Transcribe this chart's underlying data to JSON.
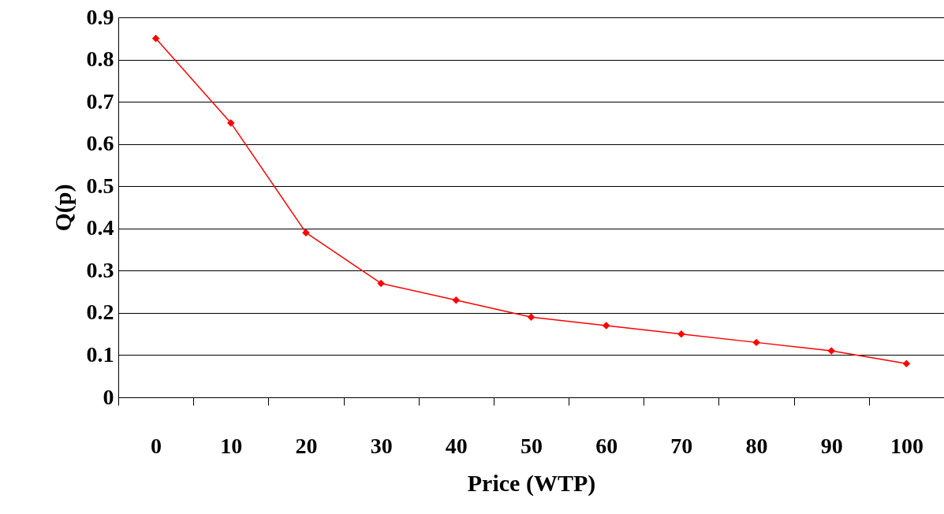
{
  "chart_data": {
    "type": "line",
    "xlabel": "Price (WTP)",
    "ylabel": "Q(p)",
    "categories": [
      "0",
      "10",
      "20",
      "30",
      "40",
      "50",
      "60",
      "70",
      "80",
      "90",
      "100"
    ],
    "series": [
      {
        "color": "#ff0000",
        "values": [
          0.85,
          0.65,
          0.39,
          0.27,
          0.23,
          0.19,
          0.17,
          0.15,
          0.13,
          0.11,
          0.08
        ]
      }
    ],
    "ylim": [
      0,
      0.9
    ],
    "yticks": [
      0,
      0.1,
      0.2,
      0.3,
      0.4,
      0.5,
      0.6,
      0.7,
      0.8,
      0.9
    ],
    "grid": "y",
    "marker": "diamond"
  }
}
